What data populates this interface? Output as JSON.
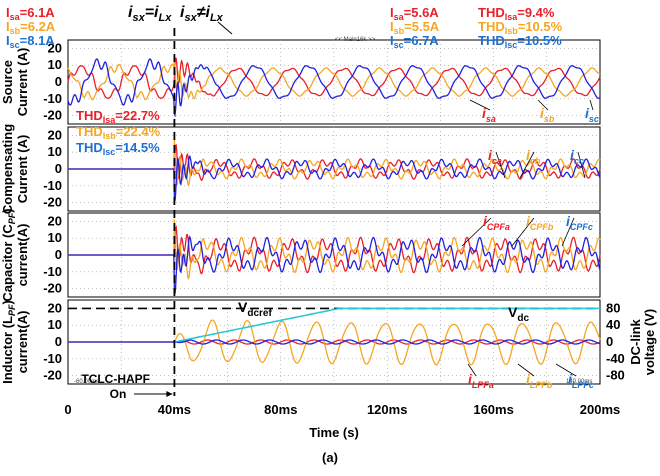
{
  "chart_data": {
    "type": "line",
    "caption": "(a)",
    "xlabel": "Time (s)",
    "x_ticks": [
      "0",
      "40ms",
      "80ms",
      "120ms",
      "160ms",
      "200ms"
    ],
    "xlim": [
      0,
      200
    ],
    "switch_time": 40,
    "switch_label_top": [
      "i",
      "sx",
      "=i",
      "Lx"
    ],
    "switch_label_top2": [
      "i",
      "sx",
      "≠i",
      "Lx"
    ],
    "switch_label_bottom": "TCLC-HAPF On",
    "panel_tags": [
      "<< Main16k >>",
      "-60.00ms",
      "140.00ms"
    ],
    "panels": [
      {
        "ylabel": "Source Current (A)",
        "ylim": [
          -25,
          25
        ],
        "y_ticks": [
          20,
          10,
          0,
          -10,
          -20
        ],
        "before": [
          {
            "label": "I",
            "sub": "sa",
            "value": "=6.1A",
            "color": "#e8202a"
          },
          {
            "label": "I",
            "sub": "sb",
            "value": "=6.2A",
            "color": "#f5a623"
          },
          {
            "label": "I",
            "sub": "sc",
            "value": "=8.1A",
            "color": "#1f6fd1"
          }
        ],
        "after": [
          {
            "label": "I",
            "sub": "sa",
            "value": "=5.6A",
            "color": "#e8202a"
          },
          {
            "label": "I",
            "sub": "sb",
            "value": "=5.5A",
            "color": "#f5a623"
          },
          {
            "label": "I",
            "sub": "sc",
            "value": "=6.7A",
            "color": "#1f6fd1"
          }
        ],
        "thd_after": [
          {
            "label": "THD",
            "sub": "Isa",
            "value": "=9.4%",
            "color": "#e8202a"
          },
          {
            "label": "THD",
            "sub": "Isb",
            "value": "=10.5%",
            "color": "#f5a623"
          },
          {
            "label": "THD",
            "sub": "Isc",
            "value": "=10.5%",
            "color": "#1f6fd1"
          }
        ],
        "series": [
          {
            "name": "i_sa",
            "label": "i",
            "sub": "sa",
            "color": "#e8202a",
            "amp_before": 8.6,
            "amp_after": 7.9
          },
          {
            "name": "i_sb",
            "label": "i",
            "sub": "sb",
            "color": "#f5a623",
            "amp_before": 8.8,
            "amp_after": 7.8
          },
          {
            "name": "i_sc",
            "label": "i",
            "sub": "sc",
            "color": "#2020e0",
            "amp_before": 11.5,
            "amp_after": 9.5
          }
        ]
      },
      {
        "ylabel": "Compensating Current (A)",
        "ylim": [
          -25,
          25
        ],
        "y_ticks": [
          20,
          10,
          0,
          -10,
          -20
        ],
        "thd_before": [
          {
            "label": "THD",
            "sub": "Isa",
            "value": "=22.7%",
            "color": "#e8202a"
          },
          {
            "label": "THD",
            "sub": "Isb",
            "value": "=22.4%",
            "color": "#f5a623"
          },
          {
            "label": "THD",
            "sub": "Isc",
            "value": "=14.5%",
            "color": "#1f6fd1"
          }
        ],
        "series": [
          {
            "name": "i_ca",
            "label": "i",
            "sub": "ca",
            "color": "#e8202a",
            "amp_before": 0,
            "amp_after": 4
          },
          {
            "name": "i_cb",
            "label": "i",
            "sub": "cb",
            "color": "#f5a623",
            "amp_before": 0,
            "amp_after": 4
          },
          {
            "name": "i_cc",
            "label": "i",
            "sub": "cc",
            "color": "#2020e0",
            "amp_before": 0,
            "amp_after": 4
          }
        ]
      },
      {
        "ylabel": "Capacitor (C_PF) current(A)",
        "ylim": [
          -25,
          25
        ],
        "y_ticks": [
          20,
          10,
          0,
          -10,
          -20
        ],
        "series": [
          {
            "name": "i_CPFa",
            "label": "i",
            "sub": "CPFa",
            "color": "#e8202a",
            "amp_before": 0,
            "amp_after": 7
          },
          {
            "name": "i_CPFb",
            "label": "i",
            "sub": "CPFb",
            "color": "#f5a623",
            "amp_before": 0,
            "amp_after": 7
          },
          {
            "name": "i_CPFc",
            "label": "i",
            "sub": "CPFc",
            "color": "#2020e0",
            "amp_before": 0,
            "amp_after": 7
          }
        ]
      },
      {
        "ylabel": "Inductor (L_PF) current(A)",
        "ylim": [
          -25,
          25
        ],
        "y_ticks": [
          20,
          10,
          0,
          -10,
          -20
        ],
        "right_ylabel": "DC-link voltage (V)",
        "right_ylim": [
          -100,
          100
        ],
        "right_ticks": [
          80,
          40,
          0,
          -40,
          -80
        ],
        "vdcref": {
          "label": "V",
          "sub": "dcref",
          "value": 80
        },
        "vdc": {
          "label": "V",
          "sub": "dc",
          "final": 80
        },
        "series": [
          {
            "name": "i_LPFa",
            "label": "i",
            "sub": "LPFa",
            "color": "#e8202a",
            "amp_before": 0,
            "amp_after": 1.2
          },
          {
            "name": "i_LPFb",
            "label": "i",
            "sub": "LPFb",
            "color": "#f5a623",
            "amp_before": 0,
            "amp_after": 12
          },
          {
            "name": "i_LPFc",
            "label": "i",
            "sub": "LPFc",
            "color": "#2020e0",
            "amp_before": 0,
            "amp_after": 1.2
          }
        ]
      }
    ]
  }
}
